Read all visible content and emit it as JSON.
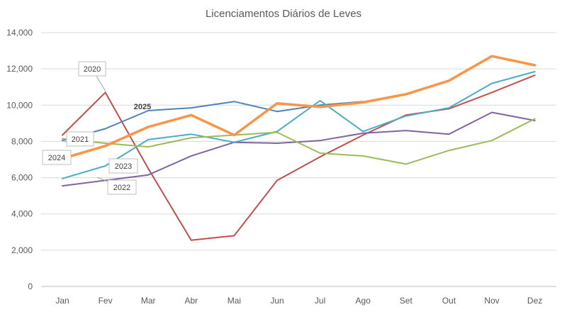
{
  "chart_data": {
    "type": "line",
    "title": "Licenciamentos Diários de Leves",
    "xlabel": "",
    "ylabel": "",
    "categories": [
      "Jan",
      "Fev",
      "Mar",
      "Abr",
      "Mai",
      "Jun",
      "Jul",
      "Ago",
      "Set",
      "Out",
      "Nov",
      "Dez"
    ],
    "ylim": [
      0,
      14000
    ],
    "y_ticks": [
      "0",
      "2,000",
      "4,000",
      "6,000",
      "8,000",
      "10,000",
      "12,000",
      "14,000"
    ],
    "grid": true,
    "legend": "none",
    "series": [
      {
        "name": "2020",
        "color": "#C0504D",
        "width": 2,
        "values": [
          8350,
          10700,
          6500,
          2550,
          2800,
          5850,
          7150,
          8350,
          9450,
          9800,
          10700,
          11650
        ]
      },
      {
        "name": "2021",
        "color": "#4F81BD",
        "width": 2,
        "values": [
          8050,
          8700,
          9700,
          9850,
          10200,
          9650,
          10000,
          10200,
          null,
          null,
          null,
          null
        ]
      },
      {
        "name": "2022",
        "color": "#8064A2",
        "width": 2,
        "values": [
          5550,
          5850,
          6150,
          7200,
          7950,
          7900,
          8050,
          8450,
          8600,
          8400,
          9600,
          9150
        ]
      },
      {
        "name": "2023",
        "color": "#4BACC6",
        "width": 2,
        "values": [
          5950,
          6650,
          8100,
          8400,
          7950,
          8550,
          10250,
          8550,
          9400,
          9850,
          11200,
          11850
        ]
      },
      {
        "name": "2024",
        "color": "#9BBB59",
        "width": 2,
        "values": [
          8150,
          7900,
          7700,
          8200,
          8350,
          8500,
          7350,
          7200,
          6750,
          7500,
          8050,
          9250
        ]
      },
      {
        "name": "2025",
        "color": "#F79646",
        "width": 3.5,
        "values": [
          7050,
          7750,
          8800,
          9450,
          8350,
          10100,
          9900,
          10150,
          10600,
          11350,
          12700,
          12200
        ]
      }
    ],
    "callouts": [
      {
        "text": "2020",
        "bold": false
      },
      {
        "text": "2021",
        "bold": false
      },
      {
        "text": "2022",
        "bold": false
      },
      {
        "text": "2023",
        "bold": false
      },
      {
        "text": "2024",
        "bold": false
      },
      {
        "text": "2025",
        "bold": true
      }
    ]
  }
}
